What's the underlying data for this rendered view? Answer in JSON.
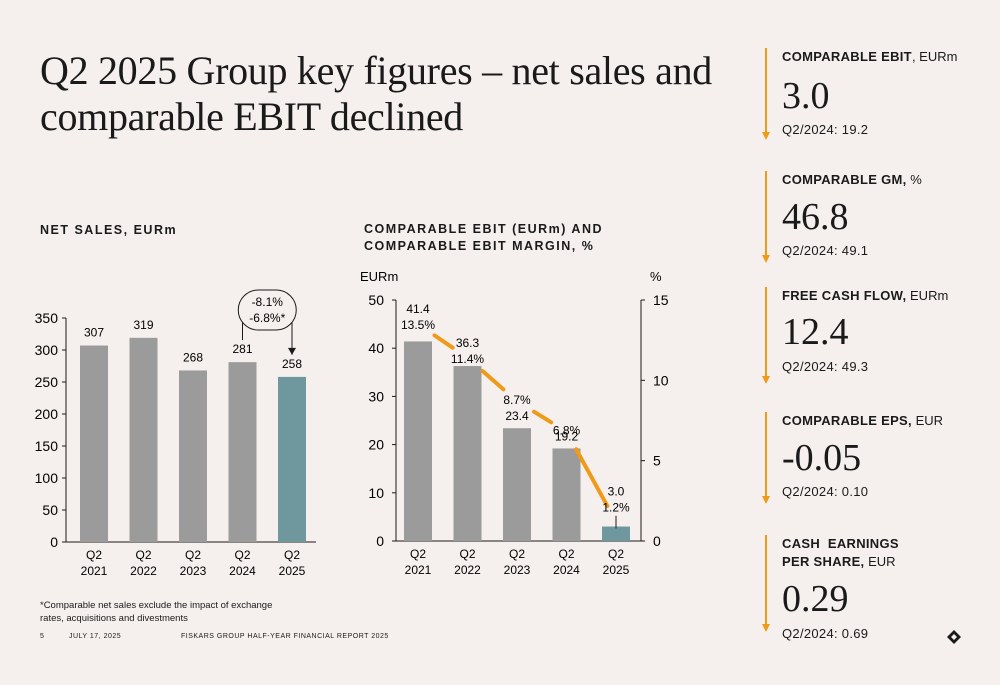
{
  "title": "Q2 2025 Group key figures – net sales and comparable EBIT declined",
  "charts": {
    "net_sales_heading": "NET SALES, EURm",
    "ebit_heading_line1": "COMPARABLE EBIT (EURm) AND",
    "ebit_heading_line2": "COMPARABLE EBIT MARGIN, %",
    "ebit_left_unit": "EURm",
    "ebit_right_unit": "%",
    "net_sales_callout_1": "-8.1%",
    "net_sales_callout_2": "-6.8%*"
  },
  "chart_data": [
    {
      "type": "bar",
      "title": "NET SALES, EURm",
      "categories": [
        "Q2 2021",
        "Q2 2022",
        "Q2 2023",
        "Q2 2024",
        "Q2 2025"
      ],
      "category_lines": [
        [
          "Q2",
          "2021"
        ],
        [
          "Q2",
          "2022"
        ],
        [
          "Q2",
          "2023"
        ],
        [
          "Q2",
          "2024"
        ],
        [
          "Q2",
          "2025"
        ]
      ],
      "values": [
        307,
        319,
        268,
        281,
        258
      ],
      "ylim": [
        0,
        350
      ],
      "yticks": [
        0,
        50,
        100,
        150,
        200,
        250,
        300,
        350
      ],
      "annotations": [
        "-8.1%",
        "-6.8%*"
      ],
      "colors": {
        "bar": "#9b9b9b",
        "highlight": "#6f979e"
      },
      "grid": false
    },
    {
      "type": "bar",
      "title": "COMPARABLE EBIT (EURm) AND COMPARABLE EBIT MARGIN, %",
      "categories": [
        "Q2 2021",
        "Q2 2022",
        "Q2 2023",
        "Q2 2024",
        "Q2 2025"
      ],
      "category_lines": [
        [
          "Q2",
          "2021"
        ],
        [
          "Q2",
          "2022"
        ],
        [
          "Q2",
          "2023"
        ],
        [
          "Q2",
          "2024"
        ],
        [
          "Q2",
          "2025"
        ]
      ],
      "series": [
        {
          "type": "bar",
          "values": [
            41.4,
            36.3,
            23.4,
            19.2,
            3.0
          ],
          "labels": [
            "41.4",
            "36.3",
            "23.4",
            "19.2",
            "3.0"
          ]
        },
        {
          "type": "line",
          "axis": "right",
          "values": [
            13.5,
            11.4,
            8.7,
            6.8,
            1.2
          ],
          "labels": [
            "13.5%",
            "11.4%",
            "8.7%",
            "6.8%",
            "1.2%"
          ]
        }
      ],
      "ylim_left": [
        0,
        50
      ],
      "yticks_left": [
        0,
        10,
        20,
        30,
        40,
        50
      ],
      "ylim_right": [
        0,
        15
      ],
      "yticks_right": [
        0,
        5,
        10,
        15
      ],
      "colors": {
        "bar": "#9b9b9b",
        "highlight": "#6f979e",
        "line": "#f09a1a"
      },
      "grid": false
    }
  ],
  "kpis": [
    {
      "label_bold": "COMPARABLE EBIT",
      "label_unit": "EURm",
      "value": "3.0",
      "prev": "Q2/2024: 19.2"
    },
    {
      "label_bold": "COMPARABLE GM,",
      "label_unit": "%",
      "value": "46.8",
      "prev": "Q2/2024: 49.1"
    },
    {
      "label_bold": "FREE CASH FLOW,",
      "label_unit": "EURm",
      "value": "12.4",
      "prev": "Q2/2024: 49.3"
    },
    {
      "label_bold": "COMPARABLE EPS,",
      "label_unit": "EUR",
      "value": "-0.05",
      "prev": "Q2/2024: 0.10"
    },
    {
      "label_bold_1": "CASH  EARNINGS",
      "label_bold_2": "PER SHARE,",
      "label_unit": "EUR",
      "value": "0.29",
      "prev": "Q2/2024: 0.69"
    }
  ],
  "footnote": "*Comparable net sales exclude the impact of exchange rates, acquisitions and divestments",
  "footer": {
    "page": "5",
    "date": "JULY 17, 2025",
    "report": "FISKARS GROUP HALF-YEAR FINANCIAL REPORT 2025"
  },
  "colors": {
    "background": "#f5f0ee",
    "accent": "#f09a1a",
    "highlight_bar": "#6f979e",
    "bar": "#9b9b9b"
  }
}
